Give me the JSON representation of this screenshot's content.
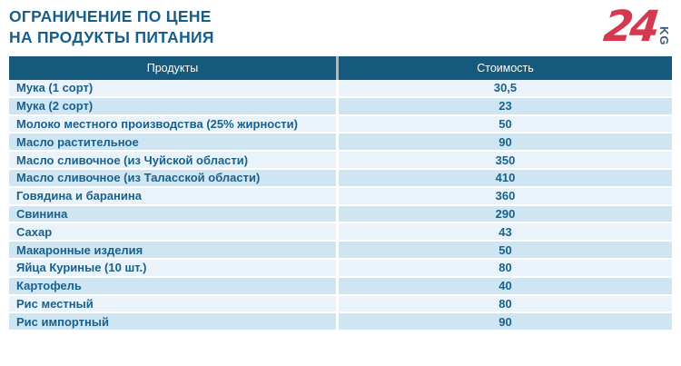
{
  "header": {
    "title_line1": "ОГРАНИЧЕНИЕ ПО ЦЕНЕ",
    "title_line2": "НА ПРОДУКТЫ ПИТАНИЯ"
  },
  "logo": {
    "number": "24",
    "suffix": "KG"
  },
  "colors": {
    "header_bg": "#15597c",
    "row_light": "#e9f3f9",
    "row_dark": "#cfe6f2",
    "text_blue": "#19618d",
    "title_blue": "#175f8a",
    "logo_red": "#d5394f",
    "logo_kg_blue": "#3c5a77"
  },
  "chart_data": {
    "type": "table",
    "title": "ОГРАНИЧЕНИЕ ПО ЦЕНЕ НА ПРОДУКТЫ ПИТАНИЯ",
    "columns": [
      "Продукты",
      "Стоимость"
    ],
    "rows": [
      {
        "product": "Мука (1 сорт)",
        "price": "30,5"
      },
      {
        "product": "Мука (2 сорт)",
        "price": "23"
      },
      {
        "product": "Молоко местного производства (25% жирности)",
        "price": "50"
      },
      {
        "product": "Масло растительное",
        "price": "90"
      },
      {
        "product": "Масло сливочное (из Чуйской области)",
        "price": "350"
      },
      {
        "product": "Масло сливочное (из Таласской области)",
        "price": "410"
      },
      {
        "product": "Говядина и баранина",
        "price": "360"
      },
      {
        "product": "Свинина",
        "price": "290"
      },
      {
        "product": "Сахар",
        "price": "43"
      },
      {
        "product": "Макаронные изделия",
        "price": "50"
      },
      {
        "product": "Яйца Куриные (10 шт.)",
        "price": "80"
      },
      {
        "product": "Картофель",
        "price": "40"
      },
      {
        "product": "Рис местный",
        "price": "80"
      },
      {
        "product": "Рис импортный",
        "price": "90"
      }
    ]
  }
}
